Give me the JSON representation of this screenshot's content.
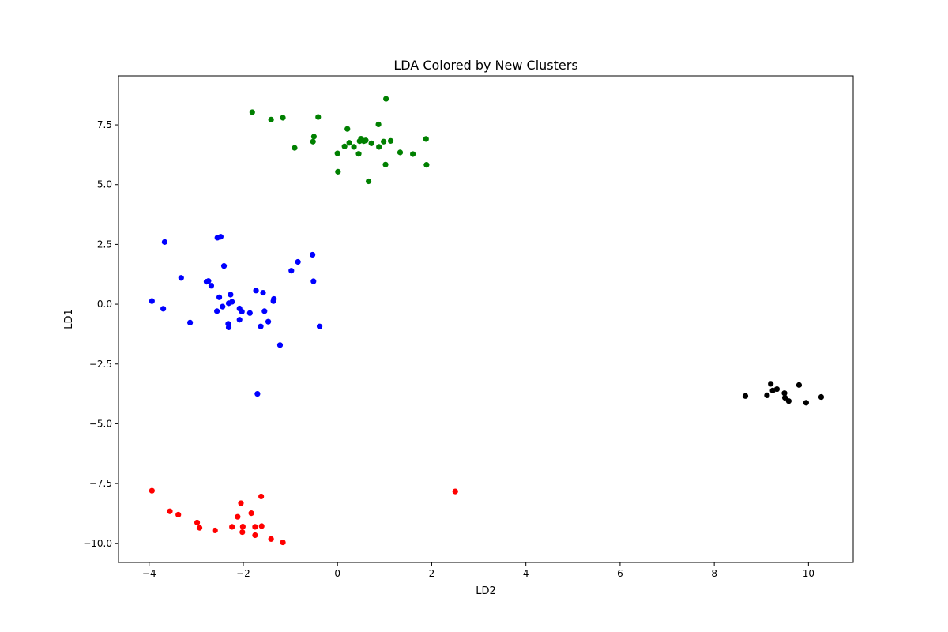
{
  "chart_data": {
    "type": "scatter",
    "title": "LDA Colored by New Clusters",
    "xlabel": "LD2",
    "ylabel": "LD1",
    "xlim": [
      -4.65,
      10.95
    ],
    "ylim": [
      -10.8,
      9.55
    ],
    "xticks": [
      -4,
      -2,
      0,
      2,
      4,
      6,
      8,
      10
    ],
    "xtick_labels": [
      "−4",
      "−2",
      "0",
      "2",
      "4",
      "6",
      "8",
      "10"
    ],
    "yticks": [
      -10.0,
      -7.5,
      -5.0,
      -2.5,
      0.0,
      2.5,
      5.0,
      7.5
    ],
    "ytick_labels": [
      "−10.0",
      "−7.5",
      "−5.0",
      "−2.5",
      "0.0",
      "2.5",
      "5.0",
      "7.5"
    ],
    "grid": false,
    "series": [
      {
        "color": "#008000",
        "points": [
          [
            -1.81,
            8.03
          ],
          [
            -1.41,
            7.72
          ],
          [
            -1.16,
            7.8
          ],
          [
            -0.41,
            7.83
          ],
          [
            1.03,
            8.59
          ],
          [
            0.21,
            7.33
          ],
          [
            0.87,
            7.52
          ],
          [
            -0.5,
            7.01
          ],
          [
            -0.52,
            6.8
          ],
          [
            -0.91,
            6.54
          ],
          [
            0.0,
            6.31
          ],
          [
            0.15,
            6.6
          ],
          [
            0.25,
            6.75
          ],
          [
            0.35,
            6.58
          ],
          [
            0.45,
            6.29
          ],
          [
            0.5,
            6.92
          ],
          [
            0.56,
            6.82
          ],
          [
            0.47,
            6.82
          ],
          [
            0.6,
            6.85
          ],
          [
            0.72,
            6.73
          ],
          [
            0.88,
            6.58
          ],
          [
            0.98,
            6.8
          ],
          [
            1.13,
            6.83
          ],
          [
            1.33,
            6.35
          ],
          [
            1.6,
            6.28
          ],
          [
            1.88,
            6.91
          ],
          [
            0.01,
            5.54
          ],
          [
            1.02,
            5.84
          ],
          [
            1.89,
            5.83
          ],
          [
            0.66,
            5.14
          ]
        ]
      },
      {
        "color": "#0000ff",
        "points": [
          [
            -3.67,
            2.6
          ],
          [
            -2.55,
            2.78
          ],
          [
            -2.48,
            2.82
          ],
          [
            -0.53,
            2.07
          ],
          [
            -2.41,
            1.6
          ],
          [
            -0.84,
            1.77
          ],
          [
            -3.32,
            1.1
          ],
          [
            -2.78,
            0.94
          ],
          [
            -2.74,
            0.97
          ],
          [
            -2.68,
            0.77
          ],
          [
            -0.98,
            1.4
          ],
          [
            -0.51,
            0.96
          ],
          [
            -1.73,
            0.57
          ],
          [
            -1.58,
            0.48
          ],
          [
            -2.27,
            0.4
          ],
          [
            -2.51,
            0.29
          ],
          [
            -1.35,
            0.22
          ],
          [
            -1.36,
            0.13
          ],
          [
            -2.24,
            0.1
          ],
          [
            -2.31,
            0.04
          ],
          [
            -2.44,
            -0.1
          ],
          [
            -2.08,
            -0.18
          ],
          [
            -2.03,
            -0.31
          ],
          [
            -1.86,
            -0.37
          ],
          [
            -2.56,
            -0.29
          ],
          [
            -3.94,
            0.13
          ],
          [
            -3.7,
            -0.19
          ],
          [
            -3.13,
            -0.77
          ],
          [
            -2.08,
            -0.65
          ],
          [
            -1.47,
            -0.73
          ],
          [
            -2.32,
            -0.82
          ],
          [
            -2.31,
            -0.97
          ],
          [
            -1.63,
            -0.93
          ],
          [
            -0.38,
            -0.93
          ],
          [
            -1.22,
            -1.71
          ],
          [
            -1.55,
            -0.29
          ],
          [
            -1.7,
            -3.75
          ]
        ]
      },
      {
        "color": "#000000",
        "points": [
          [
            8.66,
            -3.84
          ],
          [
            9.12,
            -3.81
          ],
          [
            9.2,
            -3.33
          ],
          [
            9.24,
            -3.61
          ],
          [
            9.33,
            -3.55
          ],
          [
            9.49,
            -3.72
          ],
          [
            9.5,
            -3.91
          ],
          [
            9.58,
            -4.05
          ],
          [
            9.8,
            -3.38
          ],
          [
            9.95,
            -4.12
          ],
          [
            10.27,
            -3.88
          ]
        ]
      },
      {
        "color": "#ff0000",
        "points": [
          [
            -3.94,
            -7.8
          ],
          [
            -3.56,
            -8.66
          ],
          [
            -3.38,
            -8.8
          ],
          [
            -2.98,
            -9.13
          ],
          [
            -2.93,
            -9.35
          ],
          [
            -2.6,
            -9.46
          ],
          [
            -2.24,
            -9.31
          ],
          [
            -2.12,
            -8.89
          ],
          [
            -2.05,
            -8.32
          ],
          [
            -2.01,
            -9.3
          ],
          [
            -2.02,
            -9.53
          ],
          [
            -1.83,
            -8.74
          ],
          [
            -1.75,
            -9.31
          ],
          [
            -1.75,
            -9.66
          ],
          [
            -1.62,
            -8.04
          ],
          [
            -1.61,
            -9.28
          ],
          [
            -1.41,
            -9.82
          ],
          [
            -1.16,
            -9.96
          ],
          [
            2.5,
            -7.83
          ]
        ]
      }
    ]
  }
}
